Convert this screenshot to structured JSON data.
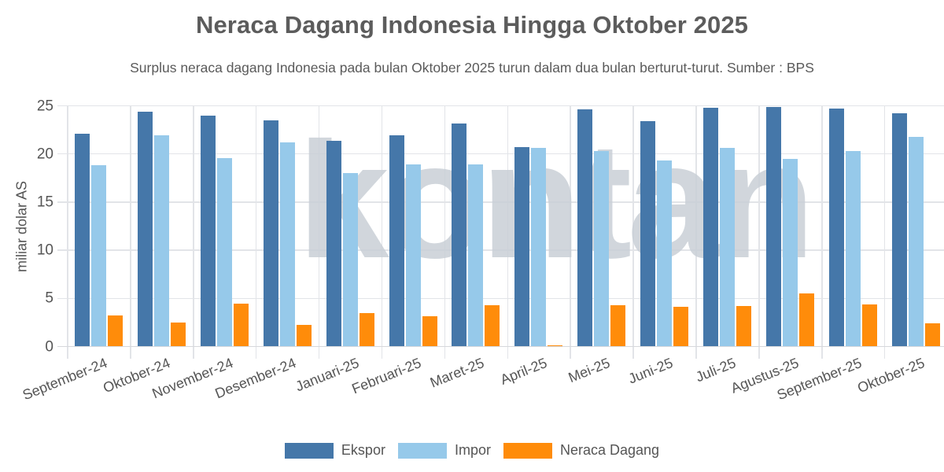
{
  "chart_data": {
    "type": "bar",
    "title": "Neraca Dagang Indonesia Hingga Oktober 2025",
    "subtitle": "Surplus neraca dagang Indonesia pada bulan Oktober 2025 turun dalam dua bulan berturut-turut. Sumber : BPS",
    "xlabel": "",
    "ylabel": "miliar dolar AS",
    "ylim": [
      0,
      25
    ],
    "yticks": [
      "0",
      "5",
      "10",
      "15",
      "20",
      "25"
    ],
    "grid": true,
    "legend_position": "bottom",
    "watermark": "kontan",
    "categories": [
      "September-24",
      "Oktober-24",
      "November-24",
      "Desember-24",
      "Januari-25",
      "Februari-25",
      "Maret-25",
      "April-25",
      "Mei-25",
      "Juni-25",
      "Juli-25",
      "Agustus-25",
      "September-25",
      "Oktober-25"
    ],
    "series": [
      {
        "name": "Ekspor",
        "color": "#4577a9",
        "values": [
          22.1,
          24.4,
          24.0,
          23.5,
          21.4,
          21.9,
          23.2,
          20.7,
          24.6,
          23.4,
          24.8,
          24.9,
          24.7,
          24.2
        ]
      },
      {
        "name": "Impor",
        "color": "#96c9ea",
        "values": [
          18.8,
          21.9,
          19.6,
          21.2,
          18.0,
          18.9,
          18.9,
          20.6,
          20.3,
          19.3,
          20.6,
          19.5,
          20.3,
          21.8
        ]
      },
      {
        "name": "Neraca Dagang",
        "color": "#ff8c0a",
        "values": [
          3.26,
          2.48,
          4.42,
          2.24,
          3.45,
          3.12,
          4.33,
          0.16,
          4.3,
          4.1,
          4.17,
          5.49,
          4.34,
          2.4
        ]
      }
    ]
  }
}
